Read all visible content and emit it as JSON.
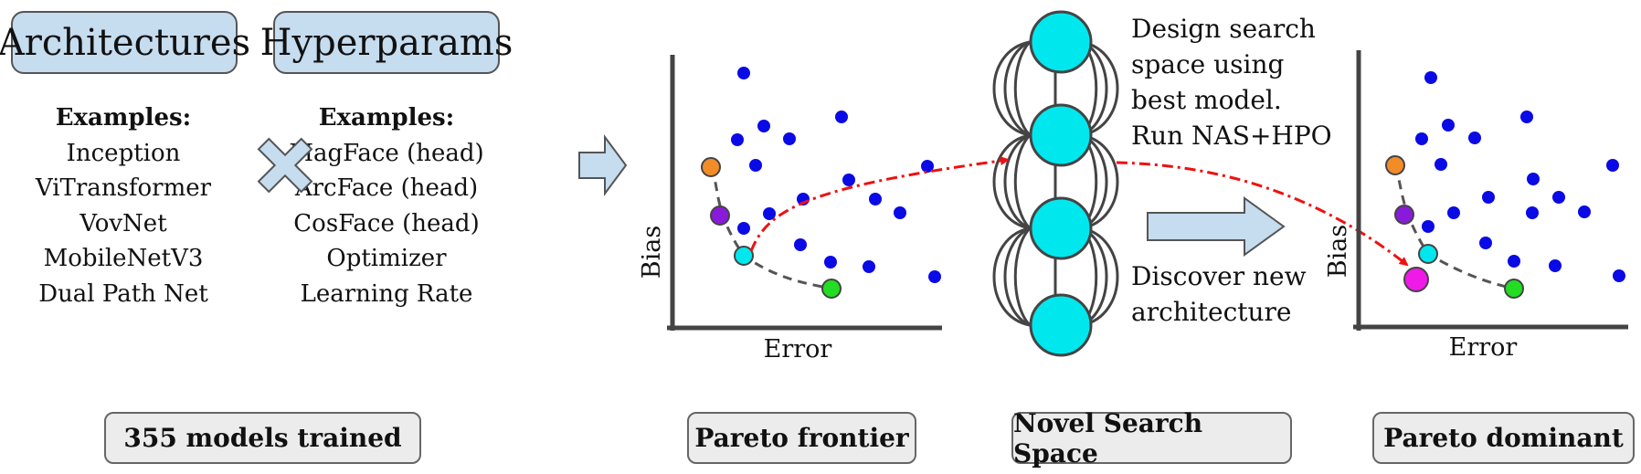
{
  "top_boxes": {
    "architectures": "Architectures",
    "hyperparams": "Hyperparams"
  },
  "architectures": {
    "header": "Examples:",
    "items": [
      "Inception",
      "ViTransformer",
      "VovNet",
      "MobileNetV3",
      "Dual Path Net"
    ]
  },
  "hyperparams": {
    "header": "Examples:",
    "items": [
      "MagFace (head)",
      "ArcFace (head)",
      "CosFace (head)",
      "Optimizer",
      "Learning Rate"
    ]
  },
  "badges": {
    "trained": "355 models trained",
    "pareto_frontier": "Pareto frontier",
    "search_space": "Novel Search Space",
    "pareto_dominant": "Pareto dominant"
  },
  "captions": {
    "design": [
      "Design search",
      "space using",
      "best model.",
      "Run NAS+HPO"
    ],
    "discover": [
      "Discover new",
      "architecture"
    ]
  },
  "plot_labels": {
    "left_x": "Error",
    "left_y": "Bias",
    "right_x": "Error",
    "right_y": "Bias"
  },
  "colors": {
    "box_fill": "#c6dcef",
    "dot_blue": "#0a0ae6",
    "orange": "#f28c28",
    "purple": "#8a1adb",
    "cyan": "#00e8ee",
    "green": "#22dd22",
    "magenta": "#f01ae8",
    "red_dash": "#ee1111"
  },
  "icons": [
    "multiply-icon",
    "right-arrow-icon",
    "big-right-arrow-icon"
  ]
}
